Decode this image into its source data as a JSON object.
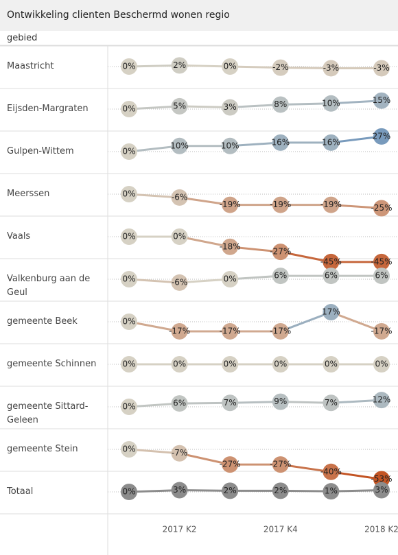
{
  "chart_data": {
    "type": "line",
    "title": "Ontwikkeling clienten Beschermd wonen regio",
    "row_header": "gebied",
    "categories": [
      null,
      "2017 K2",
      null,
      "2017 K4",
      null,
      "2018 K2"
    ],
    "ylim": [
      -60,
      40
    ],
    "color_scale": {
      "negative": "#c1440e",
      "zero": "#d6d1c4",
      "positive": "#4a80b8"
    },
    "series": [
      {
        "name": "Maastricht",
        "values": [
          0,
          2,
          0,
          -2,
          -3,
          -3
        ],
        "value_labels": [
          "0%",
          "2%",
          "0%",
          "-2%",
          "-3%",
          "-3%"
        ]
      },
      {
        "name": "Eijsden-Margraten",
        "values": [
          0,
          5,
          3,
          8,
          10,
          15
        ],
        "value_labels": [
          "0%",
          "5%",
          "3%",
          "8%",
          "10%",
          "15%"
        ]
      },
      {
        "name": "Gulpen-Wittem",
        "values": [
          0,
          10,
          10,
          16,
          16,
          27
        ],
        "value_labels": [
          "0%",
          "10%",
          "10%",
          "16%",
          "16%",
          "27%"
        ]
      },
      {
        "name": "Meerssen",
        "values": [
          0,
          -6,
          -19,
          -19,
          -19,
          -25
        ],
        "value_labels": [
          "0%",
          "-6%",
          "-19%",
          "-19%",
          "-19%",
          "-25%"
        ]
      },
      {
        "name": "Vaals",
        "values": [
          0,
          0,
          -18,
          -27,
          -45,
          -45
        ],
        "value_labels": [
          "0%",
          "0%",
          "-18%",
          "-27%",
          "-45%",
          "-45%"
        ]
      },
      {
        "name": "Valkenburg aan de Geul",
        "values": [
          0,
          -6,
          0,
          6,
          6,
          6
        ],
        "value_labels": [
          "0%",
          "-6%",
          "0%",
          "6%",
          "6%",
          "6%"
        ]
      },
      {
        "name": "gemeente Beek",
        "values": [
          0,
          -17,
          -17,
          -17,
          17,
          -17
        ],
        "value_labels": [
          "0%",
          "-17%",
          "-17%",
          "-17%",
          "17%",
          "-17%"
        ]
      },
      {
        "name": "gemeente Schinnen",
        "values": [
          0,
          0,
          0,
          0,
          0,
          0
        ],
        "value_labels": [
          "0%",
          "0%",
          "0%",
          "0%",
          "0%",
          "0%"
        ]
      },
      {
        "name": "gemeente Sittard-Geleen",
        "values": [
          0,
          6,
          7,
          9,
          7,
          12
        ],
        "value_labels": [
          "0%",
          "6%",
          "7%",
          "9%",
          "7%",
          "12%"
        ]
      },
      {
        "name": "gemeente Stein",
        "values": [
          0,
          -7,
          -27,
          -27,
          -40,
          -53
        ],
        "value_labels": [
          "0%",
          "-7%",
          "-27%",
          "-27%",
          "-40%",
          "-53%"
        ]
      },
      {
        "name": "Totaal",
        "color": "#8c8c8c",
        "values": [
          0,
          3,
          2,
          2,
          1,
          3
        ],
        "value_labels": [
          "0%",
          "3%",
          "2%",
          "2%",
          "1%",
          "3%"
        ]
      }
    ]
  }
}
